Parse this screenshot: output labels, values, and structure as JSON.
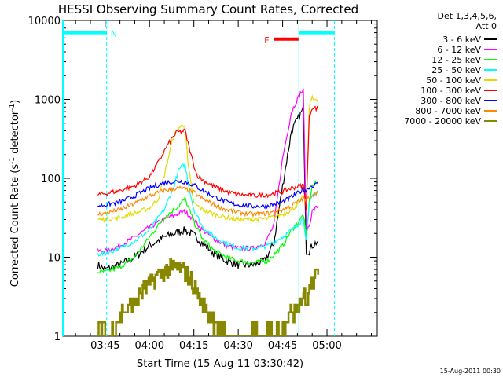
{
  "chart_data": {
    "type": "line",
    "title": "HESSI Observing Summary Count Rates, Corrected",
    "xlabel": "Start Time (15-Aug-11 03:30:42)",
    "ylabel_main": "Corrected Count Rate (s",
    "ylabel_sup1": "-1",
    "ylabel_mid": " detector",
    "ylabel_sup2": "-1",
    "ylabel_end": ")",
    "y_scale": "log",
    "ylim": [
      1,
      10000
    ],
    "xlim_minutes": [
      210.7,
      317
    ],
    "y_ticks": [
      {
        "value": 1,
        "label": "1"
      },
      {
        "value": 10,
        "label": "10"
      },
      {
        "value": 100,
        "label": "100"
      },
      {
        "value": 1000,
        "label": "1000"
      },
      {
        "value": 10000,
        "label": "10000"
      }
    ],
    "x_ticks": [
      {
        "minute": 225,
        "label": "03:45"
      },
      {
        "minute": 240,
        "label": "04:00"
      },
      {
        "minute": 255,
        "label": "04:15"
      },
      {
        "minute": 270,
        "label": "04:30"
      },
      {
        "minute": 285,
        "label": "04:45"
      },
      {
        "minute": 300,
        "label": "05:00"
      }
    ],
    "legend_header": [
      "Det 1,3,4,5,6,",
      "Att 0"
    ],
    "legend_placement": "right",
    "series": [
      {
        "name": "3 - 6 keV",
        "color": "#000000",
        "x": [
          222.5,
          225,
          230,
          235,
          240,
          245,
          250,
          252,
          255,
          258,
          262,
          266,
          270,
          275,
          279,
          282,
          285,
          288,
          291,
          292,
          293,
          294,
          295,
          297
        ],
        "y": [
          8,
          7,
          8,
          10,
          14,
          18,
          21,
          22,
          19,
          15,
          11,
          9,
          8,
          8,
          9,
          15,
          80,
          400,
          650,
          750,
          12,
          12,
          14,
          16
        ]
      },
      {
        "name": "6 - 12 keV",
        "color": "#ff00ff",
        "x": [
          222.5,
          225,
          230,
          235,
          240,
          245,
          250,
          252,
          255,
          258,
          262,
          266,
          270,
          275,
          279,
          282,
          285,
          288,
          291,
          292,
          293,
          294,
          295,
          297
        ],
        "y": [
          12,
          12,
          14,
          18,
          24,
          30,
          36,
          38,
          30,
          22,
          17,
          14,
          13,
          13,
          15,
          25,
          180,
          700,
          1200,
          1300,
          22,
          25,
          38,
          45
        ]
      },
      {
        "name": "12 - 25 keV",
        "color": "#00ff00",
        "x": [
          222.5,
          225,
          230,
          235,
          240,
          245,
          250,
          252,
          255,
          258,
          262,
          266,
          270,
          275,
          280,
          285,
          288,
          291,
          292,
          293,
          294,
          295,
          297
        ],
        "y": [
          6.5,
          6.5,
          7.5,
          10,
          18,
          32,
          45,
          55,
          28,
          17,
          12,
          10,
          9,
          8.5,
          9,
          14,
          22,
          30,
          35,
          18,
          50,
          80,
          90
        ]
      },
      {
        "name": "25 - 50 keV",
        "color": "#00ffff",
        "x": [
          222.5,
          225,
          230,
          235,
          240,
          245,
          248,
          250,
          252,
          253,
          255,
          258,
          262,
          266,
          270,
          275,
          280,
          285,
          288,
          291,
          292,
          293,
          294,
          295,
          297
        ],
        "y": [
          11,
          11,
          13,
          16,
          22,
          40,
          75,
          130,
          150,
          90,
          40,
          24,
          18,
          15,
          13,
          13,
          14,
          18,
          22,
          28,
          32,
          16,
          45,
          60,
          70
        ]
      },
      {
        "name": "50 - 100 keV",
        "color": "#dddd00",
        "x": [
          222.5,
          225,
          230,
          235,
          240,
          243,
          245,
          248,
          250,
          252,
          253,
          255,
          258,
          262,
          266,
          270,
          275,
          280,
          285,
          288,
          291,
          292,
          293,
          294,
          295,
          297
        ],
        "y": [
          30,
          30,
          32,
          36,
          42,
          55,
          110,
          330,
          440,
          480,
          150,
          48,
          40,
          35,
          32,
          30,
          30,
          31,
          35,
          40,
          50,
          60,
          45,
          800,
          1100,
          900
        ]
      },
      {
        "name": "100 - 300 keV",
        "color": "#ff0000",
        "x": [
          222.5,
          225,
          230,
          235,
          240,
          243,
          246,
          249,
          252,
          254,
          256,
          258,
          262,
          266,
          270,
          275,
          280,
          285,
          288,
          291,
          292,
          293,
          294,
          295,
          297
        ],
        "y": [
          62,
          64,
          70,
          80,
          105,
          160,
          260,
          380,
          400,
          200,
          110,
          95,
          78,
          68,
          62,
          60,
          62,
          68,
          75,
          80,
          82,
          40,
          600,
          800,
          750
        ]
      },
      {
        "name": "300 - 800 keV",
        "color": "#0000ff",
        "x": [
          222.5,
          225,
          230,
          235,
          240,
          245,
          250,
          252,
          255,
          258,
          262,
          266,
          270,
          275,
          280,
          285,
          288,
          291,
          292,
          293,
          294,
          295,
          297
        ],
        "y": [
          45,
          46,
          50,
          60,
          75,
          88,
          92,
          90,
          82,
          70,
          58,
          50,
          46,
          44,
          45,
          50,
          58,
          68,
          72,
          70,
          78,
          80,
          85
        ]
      },
      {
        "name": "800 - 7000 keV",
        "color": "#ff8800",
        "x": [
          222.5,
          225,
          230,
          235,
          240,
          245,
          250,
          252,
          255,
          258,
          262,
          266,
          270,
          275,
          280,
          285,
          288,
          291,
          292,
          293,
          294,
          295,
          297
        ],
        "y": [
          35,
          36,
          40,
          48,
          60,
          70,
          75,
          73,
          66,
          55,
          46,
          40,
          37,
          35,
          36,
          40,
          45,
          52,
          56,
          52,
          58,
          62,
          68
        ]
      },
      {
        "name": "7000 - 20000 keV",
        "color": "#888800",
        "x": [
          222.5,
          224,
          226,
          228,
          231,
          234,
          237,
          240,
          243,
          246,
          249,
          252,
          254,
          256,
          258,
          260,
          262,
          264,
          266,
          270,
          274,
          278,
          282,
          285,
          288,
          291,
          292,
          293,
          294,
          295,
          297
        ],
        "y": [
          1,
          1.5,
          1,
          1.5,
          2,
          2.5,
          3.5,
          4.5,
          6,
          7,
          7.5,
          6.5,
          5,
          3.5,
          2.5,
          2,
          1.5,
          1.2,
          1,
          1,
          1,
          1,
          1.2,
          1.5,
          2,
          3,
          3.5,
          2.5,
          4,
          5,
          6
        ]
      }
    ],
    "annotations": {
      "N_label": "N",
      "F_label": "F",
      "night_color": "#00ffff",
      "flare_color": "#ff0000",
      "night_intervals_min": [
        [
          210.7,
          225.5
        ],
        [
          290.5,
          302.5
        ]
      ],
      "flare_interval_min": [
        282,
        290.5
      ],
      "night_boundary_minutes": [
        225.5,
        290.5,
        302.5
      ]
    },
    "timestamp": "15-Aug-2011 00:30"
  }
}
